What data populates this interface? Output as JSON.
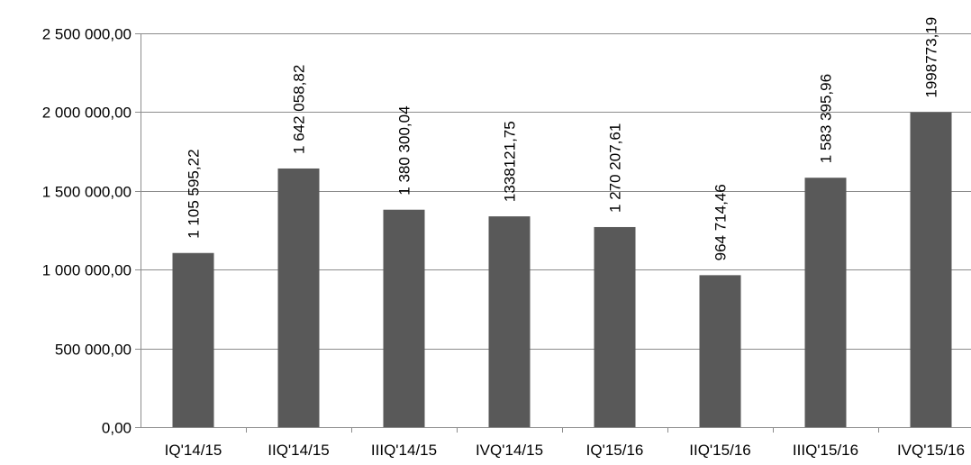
{
  "chart_data": {
    "type": "bar",
    "title": "",
    "xlabel": "",
    "ylabel": "",
    "categories": [
      "IQ'14/15",
      "IIQ'14/15",
      "IIIQ'14/15",
      "IVQ'14/15",
      "IQ'15/16",
      "IIQ'15/16",
      "IIIQ'15/16",
      "IVQ'15/16"
    ],
    "values": [
      1105595.22,
      1642058.82,
      1380300.04,
      1338121.75,
      1270207.61,
      964714.46,
      1583395.96,
      1998773.19
    ],
    "data_labels": [
      "1 105 595,22",
      "1 642 058,82",
      "1 380 300,04",
      "1338121,75",
      "1 270 207,61",
      "964 714,46",
      "1 583 395,96",
      "1998773,19"
    ],
    "ylim": [
      0,
      2500000
    ],
    "y_ticks": [
      0,
      500000,
      1000000,
      1500000,
      2000000,
      2500000
    ],
    "y_tick_labels": [
      "0,00",
      "500 000,00",
      "1 000 000,00",
      "1 500 000,00",
      "2 000 000,00",
      "2 500 000,00"
    ],
    "grid": true,
    "legend": "none",
    "colors": {
      "bar": "#595959",
      "grid": "#8c8c8c"
    }
  }
}
